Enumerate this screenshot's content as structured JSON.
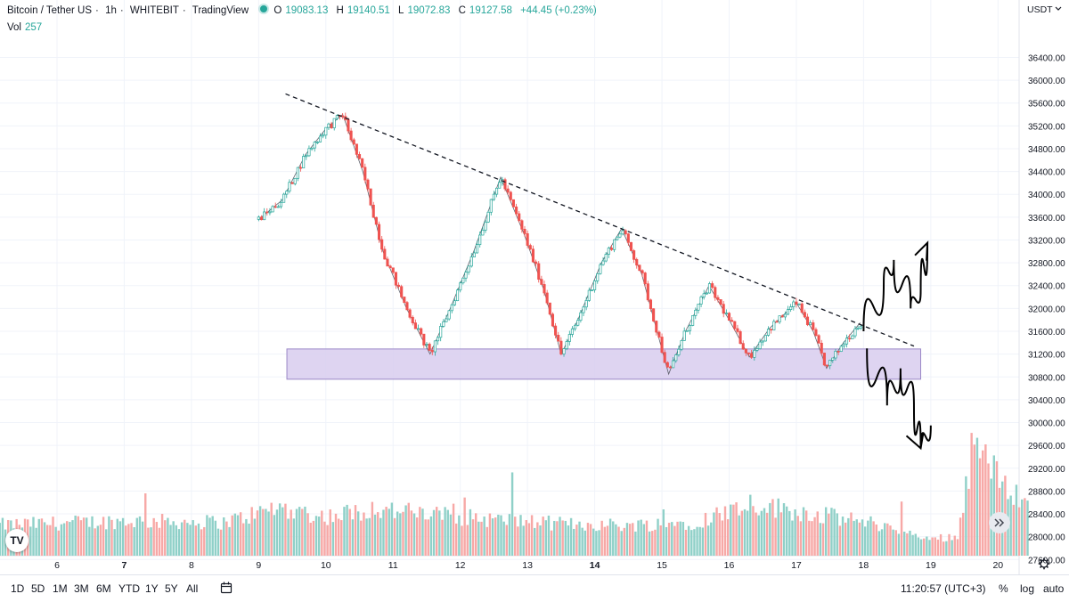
{
  "legend": {
    "symbol": "Bitcoin / Tether US",
    "interval": "1h",
    "exchange": "WHITEBIT",
    "source": "TradingView",
    "open_label": "O",
    "open": "19083.13",
    "high_label": "H",
    "high": "19140.51",
    "low_label": "L",
    "low": "19072.83",
    "close_label": "C",
    "close": "19127.58",
    "change": "+44.45 (+0.23%)",
    "vol_label": "Vol",
    "vol": "257"
  },
  "currency": "USDT",
  "currency_icon": "chevron-down-icon",
  "colors": {
    "up": "#26a69a",
    "down": "#ef5350",
    "up_vol": "#8fd0c8",
    "down_vol": "#f7a8a6",
    "zone": "#d8cdef",
    "zone_border": "#9b88c7"
  },
  "chart_data": {
    "type": "candlestick",
    "price_axis": {
      "min": 27400,
      "max": 36800,
      "ticks": [
        27600,
        28000,
        28400,
        28800,
        29200,
        29600,
        30000,
        30400,
        30800,
        31200,
        31600,
        32000,
        32400,
        32800,
        33200,
        33600,
        34000,
        34400,
        34800,
        35200,
        35600,
        36000,
        36400
      ]
    },
    "time_axis": {
      "labels": [
        "6",
        "7",
        "8",
        "9",
        "10",
        "11",
        "12",
        "13",
        "14",
        "15",
        "16",
        "17",
        "18",
        "19",
        "20"
      ]
    },
    "price_points": [
      {
        "day": 9.0,
        "price": 33560
      },
      {
        "day": 9.35,
        "price": 33900
      },
      {
        "day": 9.7,
        "price": 34700
      },
      {
        "day": 10.0,
        "price": 35150
      },
      {
        "day": 10.25,
        "price": 35400
      },
      {
        "day": 10.55,
        "price": 34400
      },
      {
        "day": 10.85,
        "price": 33000
      },
      {
        "day": 11.2,
        "price": 32000
      },
      {
        "day": 11.55,
        "price": 31200
      },
      {
        "day": 11.85,
        "price": 32000
      },
      {
        "day": 12.2,
        "price": 33000
      },
      {
        "day": 12.6,
        "price": 34300
      },
      {
        "day": 12.95,
        "price": 33300
      },
      {
        "day": 13.25,
        "price": 32300
      },
      {
        "day": 13.5,
        "price": 31200
      },
      {
        "day": 13.75,
        "price": 31800
      },
      {
        "day": 14.1,
        "price": 32800
      },
      {
        "day": 14.4,
        "price": 33400
      },
      {
        "day": 14.7,
        "price": 32600
      },
      {
        "day": 14.95,
        "price": 31500
      },
      {
        "day": 15.1,
        "price": 30850
      },
      {
        "day": 15.35,
        "price": 31600
      },
      {
        "day": 15.7,
        "price": 32400
      },
      {
        "day": 16.0,
        "price": 31800
      },
      {
        "day": 16.3,
        "price": 31150
      },
      {
        "day": 16.6,
        "price": 31650
      },
      {
        "day": 17.0,
        "price": 32100
      },
      {
        "day": 17.25,
        "price": 31600
      },
      {
        "day": 17.45,
        "price": 30950
      },
      {
        "day": 17.7,
        "price": 31400
      },
      {
        "day": 17.95,
        "price": 31750
      }
    ],
    "volume_profile": [
      {
        "day": 5.1,
        "level": 0.22
      },
      {
        "day": 7.0,
        "level": 0.25
      },
      {
        "day": 8.5,
        "level": 0.24
      },
      {
        "day": 9.3,
        "level": 0.35
      },
      {
        "day": 10.0,
        "level": 0.28
      },
      {
        "day": 10.7,
        "level": 0.34
      },
      {
        "day": 11.5,
        "level": 0.3
      },
      {
        "day": 12.5,
        "level": 0.26
      },
      {
        "day": 13.5,
        "level": 0.23
      },
      {
        "day": 14.5,
        "level": 0.22
      },
      {
        "day": 15.5,
        "level": 0.24
      },
      {
        "day": 16.3,
        "level": 0.38
      },
      {
        "day": 17.0,
        "level": 0.32
      },
      {
        "day": 17.8,
        "level": 0.26
      },
      {
        "day": 18.3,
        "level": 0.22
      },
      {
        "day": 18.9,
        "level": 0.12
      },
      {
        "day": 19.4,
        "level": 0.14
      },
      {
        "day": 19.65,
        "level": 0.85
      },
      {
        "day": 20.0,
        "level": 0.55
      },
      {
        "day": 20.4,
        "level": 0.4
      }
    ],
    "annotations": {
      "trendline": {
        "style": "dashed",
        "start": {
          "day": 9.4,
          "price": 35760
        },
        "end": {
          "day": 18.75,
          "price": 31340
        }
      },
      "support_zone": {
        "day_start": 9.42,
        "day_end": 18.85,
        "price_low": 30760,
        "price_high": 31290
      },
      "projection_up": [
        {
          "day": 18.0,
          "price": 31600
        },
        {
          "day": 18.3,
          "price": 32450
        },
        {
          "day": 18.45,
          "price": 32850
        },
        {
          "day": 18.7,
          "price": 32000
        },
        {
          "day": 18.85,
          "price": 32300
        },
        {
          "day": 18.95,
          "price": 33150
        }
      ],
      "projection_down": [
        {
          "day": 18.05,
          "price": 31300
        },
        {
          "day": 18.35,
          "price": 30300
        },
        {
          "day": 18.55,
          "price": 30950
        },
        {
          "day": 18.75,
          "price": 30250
        },
        {
          "day": 18.85,
          "price": 29550
        },
        {
          "day": 19.0,
          "price": 29950
        }
      ]
    }
  },
  "bottom_bar": {
    "timeframes": [
      "1D",
      "5D",
      "1M",
      "3M",
      "6M",
      "YTD",
      "1Y",
      "5Y",
      "All"
    ],
    "calendar_icon": "calendar-range-icon",
    "clock": "11:20:57 (UTC+3)",
    "percent": "%",
    "log": "log",
    "auto": "auto"
  },
  "logo_text": "TV",
  "scroll_icon": "double-chevron-right-icon",
  "settings_icon": "gear-icon"
}
